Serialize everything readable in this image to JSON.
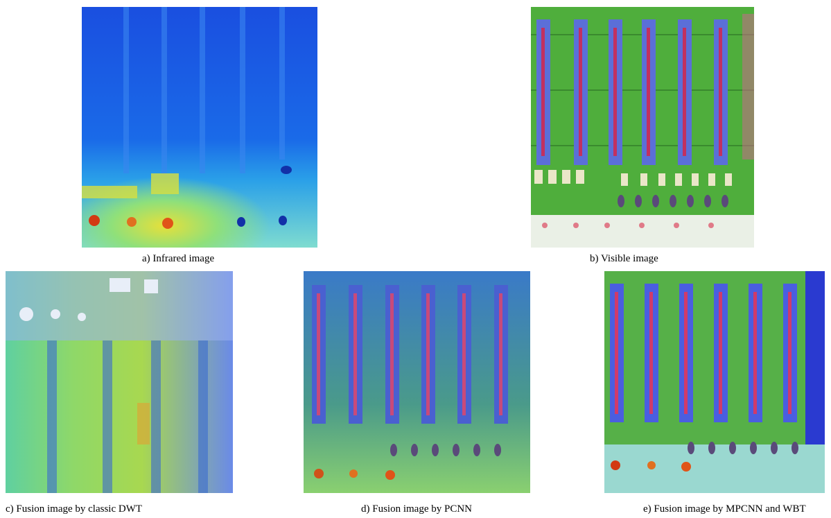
{
  "panels": [
    {
      "id": "a",
      "caption": "a) Infrared image"
    },
    {
      "id": "b",
      "caption": "b) Visible image"
    },
    {
      "id": "c",
      "caption": "c) Fusion image by classic DWT"
    },
    {
      "id": "d",
      "caption": "d) Fusion image by PCNN"
    },
    {
      "id": "e",
      "caption": "e) Fusion image by MPCNN and WBT"
    }
  ],
  "colors": {
    "ir_blue": "#1a56e0",
    "pcb_green": "#4fae3c",
    "connector_blue": "#5b6fd8",
    "hot_red": "#d23a12"
  }
}
